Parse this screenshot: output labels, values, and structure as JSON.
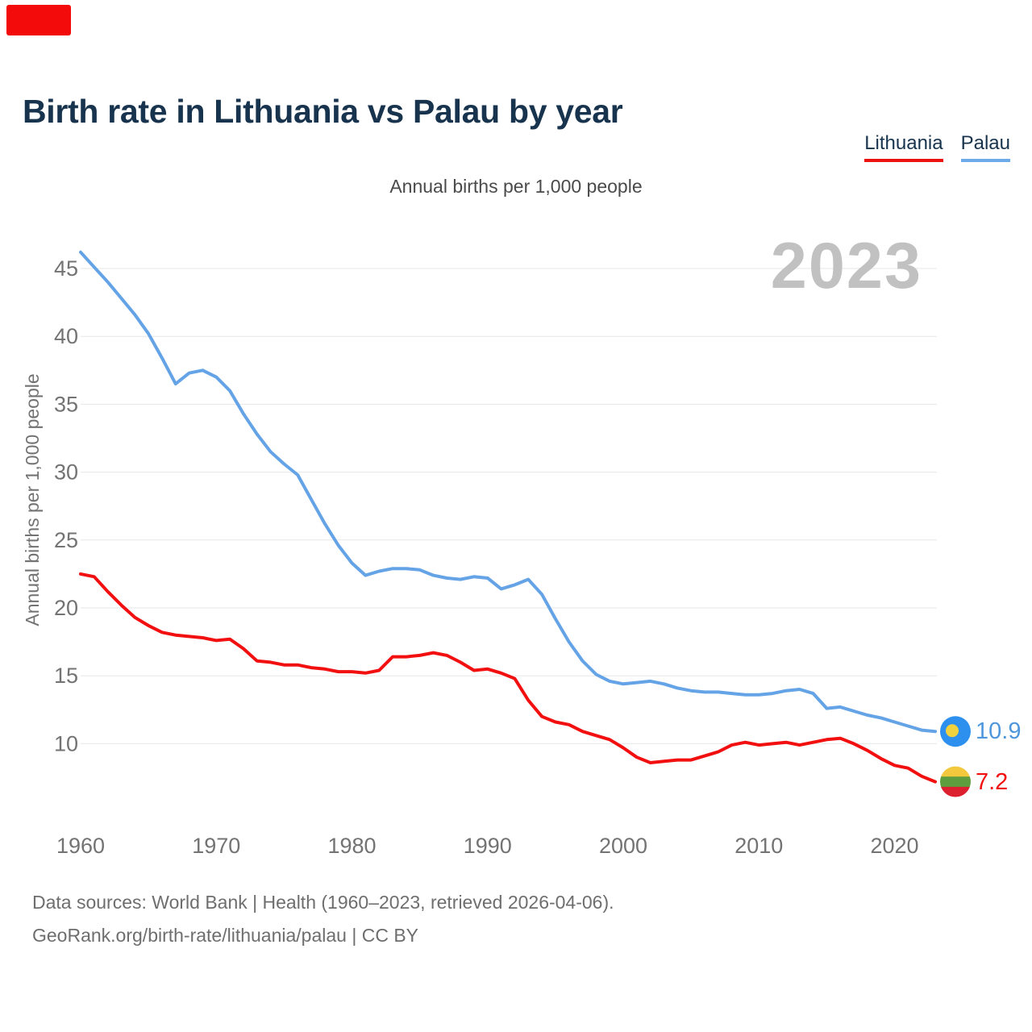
{
  "page": {
    "title": "Birth rate in Lithuania vs Palau by year",
    "subtitle": "Annual births per 1,000 people",
    "watermark": "2023",
    "footer_line1": "Data sources: World Bank | Health (1960–2023, retrieved 2026-04-06).",
    "footer_line2": "GeoRank.org/birth-rate/lithuania/palau | CC BY"
  },
  "legend": [
    {
      "label": "Lithuania",
      "color": "#ee1111"
    },
    {
      "label": "Palau",
      "color": "#6cabe8"
    }
  ],
  "end_labels": {
    "palau": "10.9",
    "lithuania": "7.2"
  },
  "colors": {
    "title": "#17334d",
    "lithuania_line": "#f10f0f",
    "palau_line": "#64a3e6",
    "gridline": "#e7e7e7",
    "axis_text": "#737373",
    "watermark": "#c1c1c1",
    "footer_text": "#6e6e6e",
    "brand_mark": "#f30b0c",
    "palau_flag_blue": "#2e90ee",
    "palau_flag_moon": "#f2d13e",
    "lithuania_flag_yellow": "#f3c83d",
    "lithuania_flag_green": "#5f9e3e",
    "lithuania_flag_red": "#dd2030"
  },
  "chart_data": {
    "type": "line",
    "title": "Birth rate in Lithuania vs Palau by year",
    "subtitle": "Annual births per 1,000 people",
    "xlabel": "",
    "ylabel": "Annual births per 1,000 people",
    "x": [
      1960,
      1961,
      1962,
      1963,
      1964,
      1965,
      1966,
      1967,
      1968,
      1969,
      1970,
      1971,
      1972,
      1973,
      1974,
      1975,
      1976,
      1977,
      1978,
      1979,
      1980,
      1981,
      1982,
      1983,
      1984,
      1985,
      1986,
      1987,
      1988,
      1989,
      1990,
      1991,
      1992,
      1993,
      1994,
      1995,
      1996,
      1997,
      1998,
      1999,
      2000,
      2001,
      2002,
      2003,
      2004,
      2005,
      2006,
      2007,
      2008,
      2009,
      2010,
      2011,
      2012,
      2013,
      2014,
      2015,
      2016,
      2017,
      2018,
      2019,
      2020,
      2021,
      2022,
      2023
    ],
    "series": [
      {
        "name": "Lithuania",
        "color": "#f10f0f",
        "final_value": 7.2,
        "values": [
          22.5,
          22.3,
          21.2,
          20.2,
          19.3,
          18.7,
          18.2,
          18.0,
          17.9,
          17.8,
          17.6,
          17.7,
          17.0,
          16.1,
          16.0,
          15.8,
          15.8,
          15.6,
          15.5,
          15.3,
          15.3,
          15.2,
          15.4,
          16.4,
          16.4,
          16.5,
          16.7,
          16.5,
          16.0,
          15.4,
          15.5,
          15.2,
          14.8,
          13.2,
          12.0,
          11.6,
          11.4,
          10.9,
          10.6,
          10.3,
          9.7,
          9.0,
          8.6,
          8.7,
          8.8,
          8.8,
          9.1,
          9.4,
          9.9,
          10.1,
          9.9,
          10.0,
          10.1,
          9.9,
          10.1,
          10.3,
          10.4,
          10.0,
          9.5,
          8.9,
          8.4,
          8.2,
          7.6,
          7.2
        ]
      },
      {
        "name": "Palau",
        "color": "#64a3e6",
        "final_value": 10.9,
        "values": [
          46.2,
          45.1,
          44.0,
          42.8,
          41.6,
          40.2,
          38.4,
          36.5,
          37.3,
          37.5,
          37.0,
          36.0,
          34.3,
          32.8,
          31.5,
          30.6,
          29.8,
          28.0,
          26.2,
          24.6,
          23.3,
          22.4,
          22.7,
          22.9,
          22.9,
          22.8,
          22.4,
          22.2,
          22.1,
          22.3,
          22.2,
          21.4,
          21.7,
          22.1,
          21.0,
          19.2,
          17.5,
          16.1,
          15.1,
          14.6,
          14.4,
          14.5,
          14.6,
          14.4,
          14.1,
          13.9,
          13.8,
          13.8,
          13.7,
          13.6,
          13.6,
          13.7,
          13.9,
          14.0,
          13.7,
          12.6,
          12.7,
          12.4,
          12.1,
          11.9,
          11.6,
          11.3,
          11.0,
          10.9
        ]
      }
    ],
    "x_ticks": [
      1960,
      1970,
      1980,
      1990,
      2000,
      2010,
      2020
    ],
    "y_ticks": [
      10,
      15,
      20,
      25,
      30,
      35,
      40,
      45
    ],
    "xlim": [
      1960,
      2023
    ],
    "ylim": [
      7,
      47
    ],
    "grid": true,
    "legend_position": "top-right"
  }
}
